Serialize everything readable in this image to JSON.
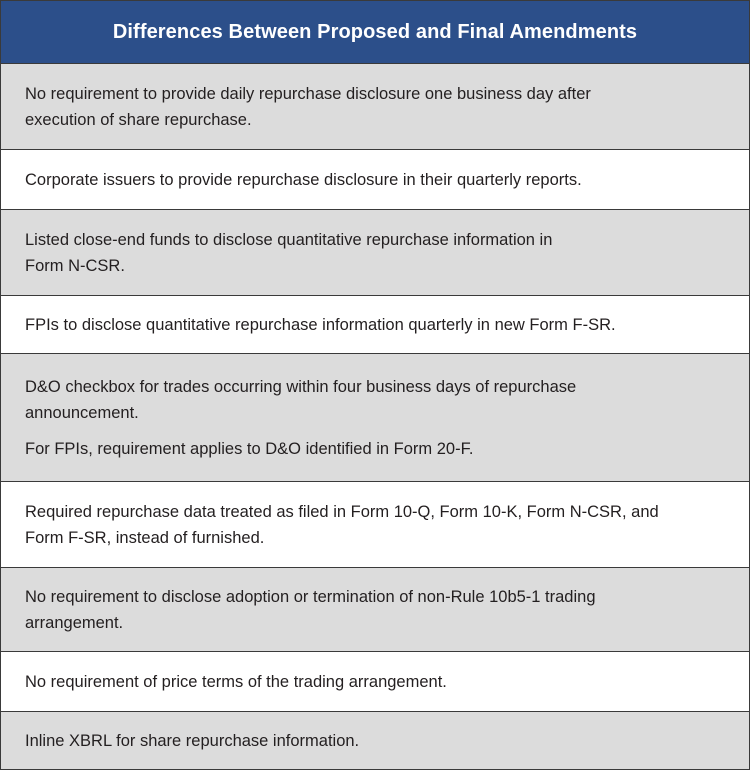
{
  "table": {
    "title": "Differences Between Proposed and Final Amendments",
    "rows": [
      {
        "lines": [
          "No requirement to provide daily repurchase disclosure one business day after",
          "execution of share repurchase."
        ]
      },
      {
        "lines": [
          "Corporate issuers to provide repurchase disclosure in their quarterly reports."
        ]
      },
      {
        "lines": [
          "Listed close-end funds to disclose quantitative repurchase information in",
          "Form N-CSR."
        ]
      },
      {
        "lines": [
          "FPIs to disclose quantitative repurchase information quarterly in new Form F-SR."
        ]
      },
      {
        "lines": [
          "D&O checkbox for trades occurring within four business days of repurchase",
          "announcement."
        ],
        "extra": "For FPIs, requirement applies to D&O identified in Form 20-F."
      },
      {
        "lines": [
          "Required repurchase data treated as filed in Form 10-Q, Form 10-K, Form N-CSR, and",
          "Form F-SR, instead of furnished."
        ]
      },
      {
        "lines": [
          "No requirement to disclose adoption or termination of non-Rule 10b5-1 trading",
          "arrangement."
        ]
      },
      {
        "lines": [
          "No requirement of price terms of the trading arrangement."
        ]
      },
      {
        "lines": [
          "Inline XBRL for share repurchase information."
        ]
      }
    ]
  },
  "colors": {
    "header_bg": "#2c4f8a",
    "shaded_row": "#dcdcdc",
    "plain_row": "#ffffff",
    "border": "#3a3a3a",
    "text": "#231f20"
  }
}
